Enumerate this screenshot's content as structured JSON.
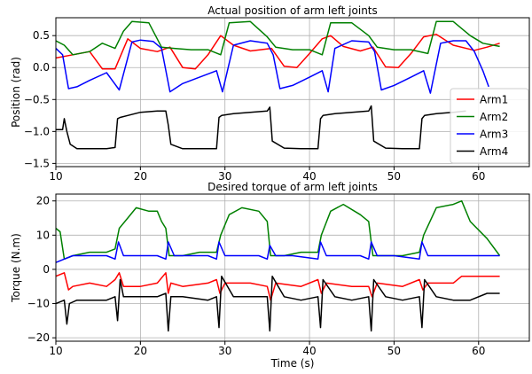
{
  "chart_data": [
    {
      "type": "line",
      "title": "Actual position of arm left joints",
      "xlabel": "",
      "ylabel": "Position (rad)",
      "xlim": [
        10,
        66
      ],
      "ylim": [
        -1.55,
        0.78
      ],
      "xticks": [
        10,
        20,
        30,
        40,
        50,
        60
      ],
      "yticks": [
        -1.5,
        -1.0,
        -0.5,
        0.0,
        0.5
      ],
      "ytick_labels": [
        "−1.5",
        "−1.0",
        "−0.5",
        "0.0",
        "0.5"
      ],
      "xtick_labels": [
        "10",
        "20",
        "30",
        "40",
        "50",
        "60"
      ],
      "grid": true,
      "legend_position": "lower-right",
      "series": [
        {
          "name": "Arm1",
          "color": "#ff0000",
          "x": [
            10,
            12,
            14,
            15.5,
            17,
            18.5,
            20,
            22,
            23.5,
            25,
            26.5,
            28,
            29.5,
            31,
            33,
            35.5,
            37,
            38.5,
            40,
            41.5,
            42.5,
            44,
            46,
            47.5,
            49,
            50.5,
            52,
            53.5,
            55,
            57,
            59.5,
            61,
            62.5
          ],
          "y": [
            0.15,
            0.2,
            0.25,
            -0.02,
            -0.02,
            0.45,
            0.3,
            0.25,
            0.32,
            0.0,
            -0.02,
            0.2,
            0.5,
            0.35,
            0.26,
            0.3,
            0.02,
            0.0,
            0.22,
            0.45,
            0.5,
            0.33,
            0.26,
            0.32,
            0.01,
            0.0,
            0.22,
            0.48,
            0.52,
            0.35,
            0.27,
            0.32,
            0.38
          ]
        },
        {
          "name": "Arm2",
          "color": "#008000",
          "x": [
            10,
            11,
            12,
            14,
            15.5,
            17,
            18,
            19,
            21,
            22.5,
            24,
            26,
            28,
            29.5,
            30.5,
            33,
            35,
            36,
            38,
            40,
            41.5,
            42.5,
            45,
            47,
            48,
            50,
            52,
            54,
            55,
            57,
            59,
            60.5,
            62.5
          ],
          "y": [
            0.42,
            0.35,
            0.2,
            0.25,
            0.38,
            0.3,
            0.57,
            0.72,
            0.7,
            0.32,
            0.3,
            0.28,
            0.28,
            0.2,
            0.7,
            0.72,
            0.48,
            0.32,
            0.28,
            0.28,
            0.2,
            0.7,
            0.7,
            0.5,
            0.32,
            0.28,
            0.28,
            0.22,
            0.72,
            0.72,
            0.5,
            0.38,
            0.33
          ]
        },
        {
          "name": "Arm3",
          "color": "#0000ff",
          "x": [
            10,
            10.8,
            11.5,
            12.5,
            14,
            16,
            17.5,
            18.2,
            19,
            20,
            21.5,
            22.5,
            23.5,
            25,
            27,
            29,
            29.7,
            31,
            33,
            35,
            35.7,
            36.5,
            38,
            40,
            41.5,
            42.2,
            43,
            45,
            47,
            47.7,
            48.5,
            50,
            52,
            53.5,
            54.3,
            55.5,
            57,
            58.5,
            59.5,
            60.5,
            61.2
          ],
          "y": [
            0.3,
            0.2,
            -0.33,
            -0.3,
            -0.2,
            -0.08,
            -0.35,
            0.0,
            0.4,
            0.43,
            0.41,
            0.3,
            -0.38,
            -0.25,
            -0.15,
            -0.05,
            -0.38,
            0.35,
            0.42,
            0.38,
            0.2,
            -0.33,
            -0.28,
            -0.15,
            -0.05,
            -0.38,
            0.3,
            0.42,
            0.4,
            0.25,
            -0.35,
            -0.28,
            -0.15,
            -0.05,
            -0.4,
            0.38,
            0.42,
            0.42,
            0.25,
            -0.05,
            -0.3
          ]
        },
        {
          "name": "Arm4",
          "color": "#000000",
          "x": [
            10,
            10.8,
            11,
            11.3,
            11.7,
            12.5,
            14,
            16,
            17,
            17.3,
            17.6,
            18.5,
            20,
            22,
            23,
            23.3,
            23.6,
            25,
            27,
            29,
            29.3,
            29.6,
            31,
            33,
            35,
            35.3,
            35.6,
            37,
            39,
            41,
            41.3,
            41.6,
            43,
            45,
            47,
            47.3,
            47.6,
            49,
            51,
            53,
            53.3,
            53.6,
            55,
            57,
            58.5
          ],
          "y": [
            -0.97,
            -0.97,
            -0.8,
            -1.0,
            -1.2,
            -1.27,
            -1.27,
            -1.27,
            -1.25,
            -0.8,
            -0.78,
            -0.75,
            -0.7,
            -0.68,
            -0.68,
            -0.9,
            -1.2,
            -1.27,
            -1.27,
            -1.27,
            -0.78,
            -0.75,
            -0.72,
            -0.7,
            -0.68,
            -0.62,
            -1.15,
            -1.26,
            -1.27,
            -1.27,
            -0.8,
            -0.75,
            -0.72,
            -0.7,
            -0.68,
            -0.6,
            -1.15,
            -1.26,
            -1.27,
            -1.27,
            -0.8,
            -0.75,
            -0.72,
            -0.7,
            -0.68
          ]
        }
      ]
    },
    {
      "type": "line",
      "title": "Desired torque of arm left joints",
      "xlabel": "Time (s)",
      "ylabel": "Torque (N.m)",
      "xlim": [
        10,
        66
      ],
      "ylim": [
        -21,
        22
      ],
      "xticks": [
        10,
        20,
        30,
        40,
        50,
        60
      ],
      "yticks": [
        -20,
        -10,
        0,
        10,
        20
      ],
      "ytick_labels": [
        "−20",
        "−10",
        "0",
        "10",
        "20"
      ],
      "xtick_labels": [
        "10",
        "20",
        "30",
        "40",
        "50",
        "60"
      ],
      "grid": true,
      "series": [
        {
          "name": "Arm1",
          "color": "#ff0000",
          "x": [
            10,
            11,
            11.5,
            12,
            14,
            16,
            17,
            17.5,
            18,
            20,
            22,
            23,
            23.3,
            23.6,
            25,
            28,
            29,
            29.4,
            30,
            33,
            35,
            35.4,
            36,
            39,
            41,
            41.4,
            42,
            45,
            47,
            47.4,
            48,
            51,
            53,
            53.4,
            54,
            57,
            58,
            60,
            62.5
          ],
          "y": [
            -2,
            -1,
            -6,
            -5,
            -4,
            -5,
            -3,
            -1,
            -5,
            -5,
            -4,
            -1,
            -7,
            -4,
            -5,
            -4,
            -3,
            -7,
            -4,
            -4,
            -5,
            -9,
            -4,
            -5,
            -3,
            -7,
            -4,
            -5,
            -5,
            -8,
            -4,
            -5,
            -3,
            -6,
            -4,
            -4,
            -2,
            -2,
            -2
          ]
        },
        {
          "name": "Arm2",
          "color": "#008000",
          "x": [
            10,
            10.5,
            11,
            12,
            14,
            16,
            17,
            17.5,
            18.5,
            19.5,
            21,
            22,
            22.5,
            23,
            23.4,
            25,
            27,
            29,
            29.5,
            30.5,
            32,
            34,
            35,
            35.4,
            37,
            39,
            41,
            41.4,
            42.5,
            44,
            46,
            47,
            47.5,
            49,
            51,
            53,
            53.5,
            55,
            57,
            58,
            59,
            61,
            62.5
          ],
          "y": [
            12,
            11,
            3,
            4,
            5,
            5,
            6,
            12,
            15,
            18,
            17,
            17,
            14,
            12,
            4,
            4,
            5,
            5,
            10,
            16,
            18,
            17,
            14,
            4,
            4,
            5,
            5,
            10,
            17,
            19,
            16,
            14,
            4,
            4,
            4,
            5,
            10,
            18,
            19,
            20,
            14,
            9,
            4
          ]
        },
        {
          "name": "Arm3",
          "color": "#0000ff",
          "x": [
            10,
            11,
            12,
            14,
            16,
            17,
            17.4,
            18,
            20,
            22,
            23,
            23.3,
            24,
            26,
            28,
            29,
            29.3,
            30,
            32,
            34,
            35,
            35.3,
            36,
            38,
            41,
            41.3,
            42,
            44,
            46,
            47,
            47.3,
            48,
            50,
            53,
            53.3,
            54,
            56,
            58,
            60,
            62.5
          ],
          "y": [
            2,
            3,
            4,
            4,
            4,
            3,
            8,
            4,
            4,
            4,
            3,
            8,
            4,
            4,
            4,
            3,
            8,
            4,
            4,
            4,
            3,
            7,
            4,
            4,
            3,
            8,
            4,
            4,
            4,
            3,
            8,
            4,
            4,
            3,
            8,
            4,
            4,
            4,
            4,
            4
          ]
        },
        {
          "name": "Arm4",
          "color": "#000000",
          "x": [
            10,
            11,
            11.3,
            11.6,
            12.5,
            14,
            16,
            17,
            17.3,
            17.6,
            18,
            20,
            22,
            23,
            23.3,
            23.6,
            25,
            28,
            29,
            29.3,
            29.6,
            31,
            33,
            35,
            35.3,
            35.6,
            37,
            39,
            41,
            41.3,
            41.6,
            43,
            45,
            47,
            47.3,
            47.6,
            49,
            51,
            53,
            53.3,
            53.6,
            55,
            57,
            59,
            61,
            62.5
          ],
          "y": [
            -10,
            -9,
            -16,
            -10,
            -9,
            -9,
            -9,
            -8,
            -15,
            -3,
            -8,
            -8,
            -8,
            -7,
            -18,
            -8,
            -8,
            -9,
            -8,
            -17,
            -2,
            -8,
            -8,
            -8,
            -18,
            -2,
            -8,
            -9,
            -8,
            -17,
            -3,
            -8,
            -9,
            -8,
            -18,
            -3,
            -8,
            -9,
            -8,
            -17,
            -3,
            -8,
            -9,
            -9,
            -7,
            -7
          ]
        }
      ]
    }
  ]
}
